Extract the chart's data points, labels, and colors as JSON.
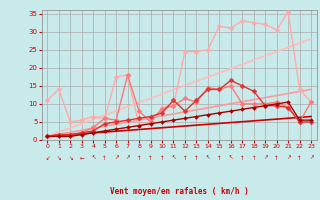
{
  "background_color": "#c8eaea",
  "grid_color": "#aaaaaa",
  "xlabel": "Vent moyen/en rafales ( km/h )",
  "ylabel_ticks": [
    0,
    5,
    10,
    15,
    20,
    25,
    30,
    35
  ],
  "xlim": [
    -0.5,
    23.5
  ],
  "ylim": [
    0,
    36
  ],
  "xticks": [
    0,
    1,
    2,
    3,
    4,
    5,
    6,
    7,
    8,
    9,
    10,
    11,
    12,
    13,
    14,
    15,
    16,
    17,
    18,
    19,
    20,
    21,
    22,
    23
  ],
  "lines": [
    {
      "comment": "lightest pink - straight reference line (max)",
      "x": [
        0,
        23
      ],
      "y": [
        1.0,
        28.0
      ],
      "color": "#ffbbbb",
      "lw": 1.2,
      "marker": null,
      "ms": 0
    },
    {
      "comment": "medium pink - straight reference line (mid)",
      "x": [
        0,
        23
      ],
      "y": [
        1.0,
        14.0
      ],
      "color": "#ff9999",
      "lw": 1.2,
      "marker": null,
      "ms": 0
    },
    {
      "comment": "dark red - straight reference line (low)",
      "x": [
        0,
        23
      ],
      "y": [
        1.0,
        6.5
      ],
      "color": "#cc0000",
      "lw": 1.2,
      "marker": null,
      "ms": 0
    },
    {
      "comment": "light pink zigzag line - highest values",
      "x": [
        0,
        1,
        2,
        3,
        4,
        5,
        6,
        7,
        8,
        9,
        10,
        11,
        12,
        13,
        14,
        15,
        16,
        17,
        18,
        19,
        20,
        21,
        22,
        23
      ],
      "y": [
        11.0,
        14.0,
        5.0,
        5.5,
        6.5,
        6.0,
        17.5,
        18.0,
        4.0,
        5.0,
        9.0,
        9.5,
        24.5,
        24.5,
        25.0,
        31.5,
        31.0,
        33.0,
        32.5,
        32.0,
        30.5,
        35.5,
        14.0,
        10.5
      ],
      "color": "#ffaaaa",
      "lw": 1.0,
      "marker": "D",
      "ms": 2.5
    },
    {
      "comment": "medium pink line with diamonds",
      "x": [
        0,
        1,
        2,
        3,
        4,
        5,
        6,
        7,
        8,
        9,
        10,
        11,
        12,
        13,
        14,
        15,
        16,
        17,
        18,
        19,
        20,
        21,
        22,
        23
      ],
      "y": [
        1.0,
        1.5,
        1.5,
        2.0,
        3.5,
        6.0,
        5.5,
        18.0,
        8.0,
        5.0,
        8.5,
        9.5,
        11.5,
        10.5,
        14.5,
        14.0,
        15.0,
        10.0,
        10.0,
        10.0,
        10.5,
        9.0,
        5.0,
        10.5
      ],
      "color": "#ff7777",
      "lw": 1.0,
      "marker": "D",
      "ms": 2.5
    },
    {
      "comment": "medium red line",
      "x": [
        0,
        1,
        2,
        3,
        4,
        5,
        6,
        7,
        8,
        9,
        10,
        11,
        12,
        13,
        14,
        15,
        16,
        17,
        18,
        19,
        20,
        21,
        22,
        23
      ],
      "y": [
        1.0,
        1.5,
        1.5,
        2.0,
        2.5,
        4.5,
        5.0,
        5.5,
        6.0,
        6.5,
        7.5,
        11.0,
        8.0,
        11.0,
        14.0,
        14.0,
        16.5,
        15.0,
        13.5,
        9.5,
        9.5,
        9.0,
        5.0,
        5.0
      ],
      "color": "#dd3333",
      "lw": 1.0,
      "marker": "D",
      "ms": 2.5
    },
    {
      "comment": "dark red bottom line with small markers",
      "x": [
        0,
        1,
        2,
        3,
        4,
        5,
        6,
        7,
        8,
        9,
        10,
        11,
        12,
        13,
        14,
        15,
        16,
        17,
        18,
        19,
        20,
        21,
        22,
        23
      ],
      "y": [
        1.0,
        1.0,
        1.0,
        1.5,
        2.0,
        2.5,
        3.0,
        3.5,
        4.0,
        4.5,
        5.0,
        5.5,
        6.0,
        6.5,
        7.0,
        7.5,
        8.0,
        8.5,
        9.0,
        9.5,
        10.0,
        10.5,
        5.5,
        5.5
      ],
      "color": "#aa0000",
      "lw": 1.0,
      "marker": "D",
      "ms": 2.0
    }
  ],
  "wind_arrows": {
    "x": [
      0,
      1,
      2,
      3,
      4,
      5,
      6,
      7,
      8,
      9,
      10,
      11,
      12,
      13,
      14,
      15,
      16,
      17,
      18,
      19,
      20,
      21,
      22,
      23
    ],
    "symbols": [
      "↙",
      "↘",
      "↘",
      "←",
      "↖",
      "↑",
      "↗",
      "↗",
      "↑",
      "↑",
      "↑",
      "↖",
      "↑",
      "↑",
      "↖",
      "↑",
      "↖",
      "↑",
      "↑",
      "↗",
      "↑",
      "↗",
      "↑",
      "↗"
    ]
  }
}
